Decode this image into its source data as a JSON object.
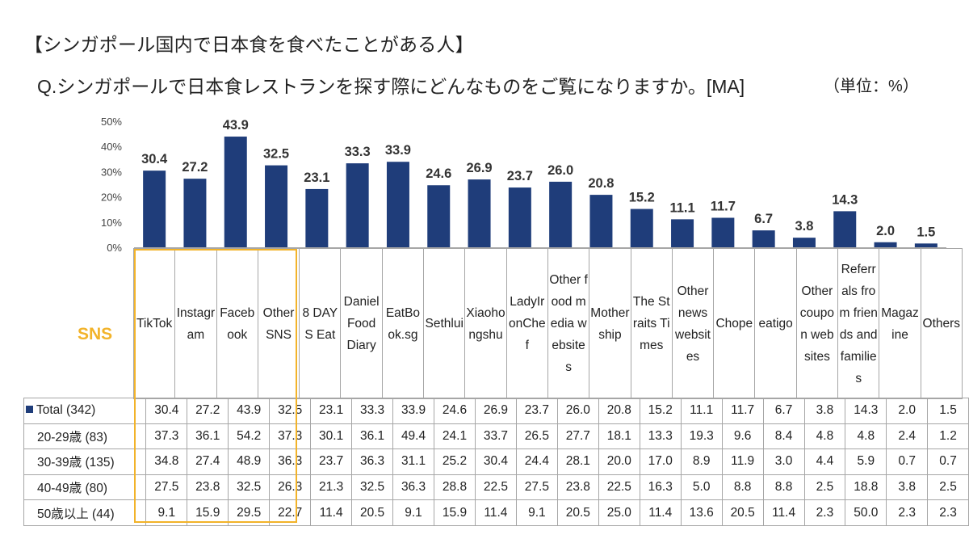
{
  "heading": "【シンガポール国内で日本食を食べたことがある人】",
  "question": "Q.シンガポールで日本食レストランを探す際にどんなものをご覧になりますか。[MA]",
  "unit": "（単位：%）",
  "sns_label": "SNS",
  "colors": {
    "bar": "#1f3d7a",
    "sns_box": "#f2b32a",
    "grid": "#a6a6a6"
  },
  "chart_data": {
    "type": "bar",
    "categories": [
      "TikTok",
      "Instagram",
      "Facebook",
      "Other SNS",
      "8 DAYS Eat",
      "Daniel Food Diary",
      "EatBook.sg",
      "Sethlui",
      "Xiaohongshu",
      "LadyIronChef",
      "Other food media websites",
      "Mothership",
      "The Straits Times",
      "Other news websites",
      "Chope",
      "eatigo",
      "Other coupon websites",
      "Referrals from friends and families",
      "Magazine",
      "Others"
    ],
    "values": [
      30.4,
      27.2,
      43.9,
      32.5,
      23.1,
      33.3,
      33.9,
      24.6,
      26.9,
      23.7,
      26.0,
      20.8,
      15.2,
      11.1,
      11.7,
      6.7,
      3.8,
      14.3,
      2.0,
      1.5
    ],
    "value_labels": [
      "30.4",
      "27.2",
      "43.9",
      "32.5",
      "23.1",
      "33.3",
      "33.9",
      "24.6",
      "26.9",
      "23.7",
      "26.0",
      "20.8",
      "15.2",
      "11.1",
      "11.7",
      "6.7",
      "3.8",
      "14.3",
      "2.0",
      "1.5"
    ],
    "yticks": [
      "0%",
      "10%",
      "20%",
      "30%",
      "40%",
      "50%"
    ],
    "ylim": [
      0,
      50
    ],
    "title": "",
    "xlabel": "",
    "ylabel": ""
  },
  "table": {
    "rows": [
      {
        "label": "Total (342)",
        "legend": true,
        "values": [
          "30.4",
          "27.2",
          "43.9",
          "32.5",
          "23.1",
          "33.3",
          "33.9",
          "24.6",
          "26.9",
          "23.7",
          "26.0",
          "20.8",
          "15.2",
          "11.1",
          "11.7",
          "6.7",
          "3.8",
          "14.3",
          "2.0",
          "1.5"
        ]
      },
      {
        "label": "20-29歳 (83)",
        "legend": false,
        "values": [
          "37.3",
          "36.1",
          "54.2",
          "37.3",
          "30.1",
          "36.1",
          "49.4",
          "24.1",
          "33.7",
          "26.5",
          "27.7",
          "18.1",
          "13.3",
          "19.3",
          "9.6",
          "8.4",
          "4.8",
          "4.8",
          "2.4",
          "1.2"
        ]
      },
      {
        "label": "30-39歳 (135)",
        "legend": false,
        "values": [
          "34.8",
          "27.4",
          "48.9",
          "36.3",
          "23.7",
          "36.3",
          "31.1",
          "25.2",
          "30.4",
          "24.4",
          "28.1",
          "20.0",
          "17.0",
          "8.9",
          "11.9",
          "3.0",
          "4.4",
          "5.9",
          "0.7",
          "0.7"
        ]
      },
      {
        "label": "40-49歳 (80)",
        "legend": false,
        "values": [
          "27.5",
          "23.8",
          "32.5",
          "26.3",
          "21.3",
          "32.5",
          "36.3",
          "28.8",
          "22.5",
          "27.5",
          "23.8",
          "22.5",
          "16.3",
          "5.0",
          "8.8",
          "8.8",
          "2.5",
          "18.8",
          "3.8",
          "2.5"
        ]
      },
      {
        "label": "50歳以上 (44)",
        "legend": false,
        "values": [
          "9.1",
          "15.9",
          "29.5",
          "22.7",
          "11.4",
          "20.5",
          "9.1",
          "15.9",
          "11.4",
          "9.1",
          "20.5",
          "25.0",
          "11.4",
          "13.6",
          "20.5",
          "11.4",
          "2.3",
          "50.0",
          "2.3",
          "2.3"
        ]
      }
    ]
  }
}
